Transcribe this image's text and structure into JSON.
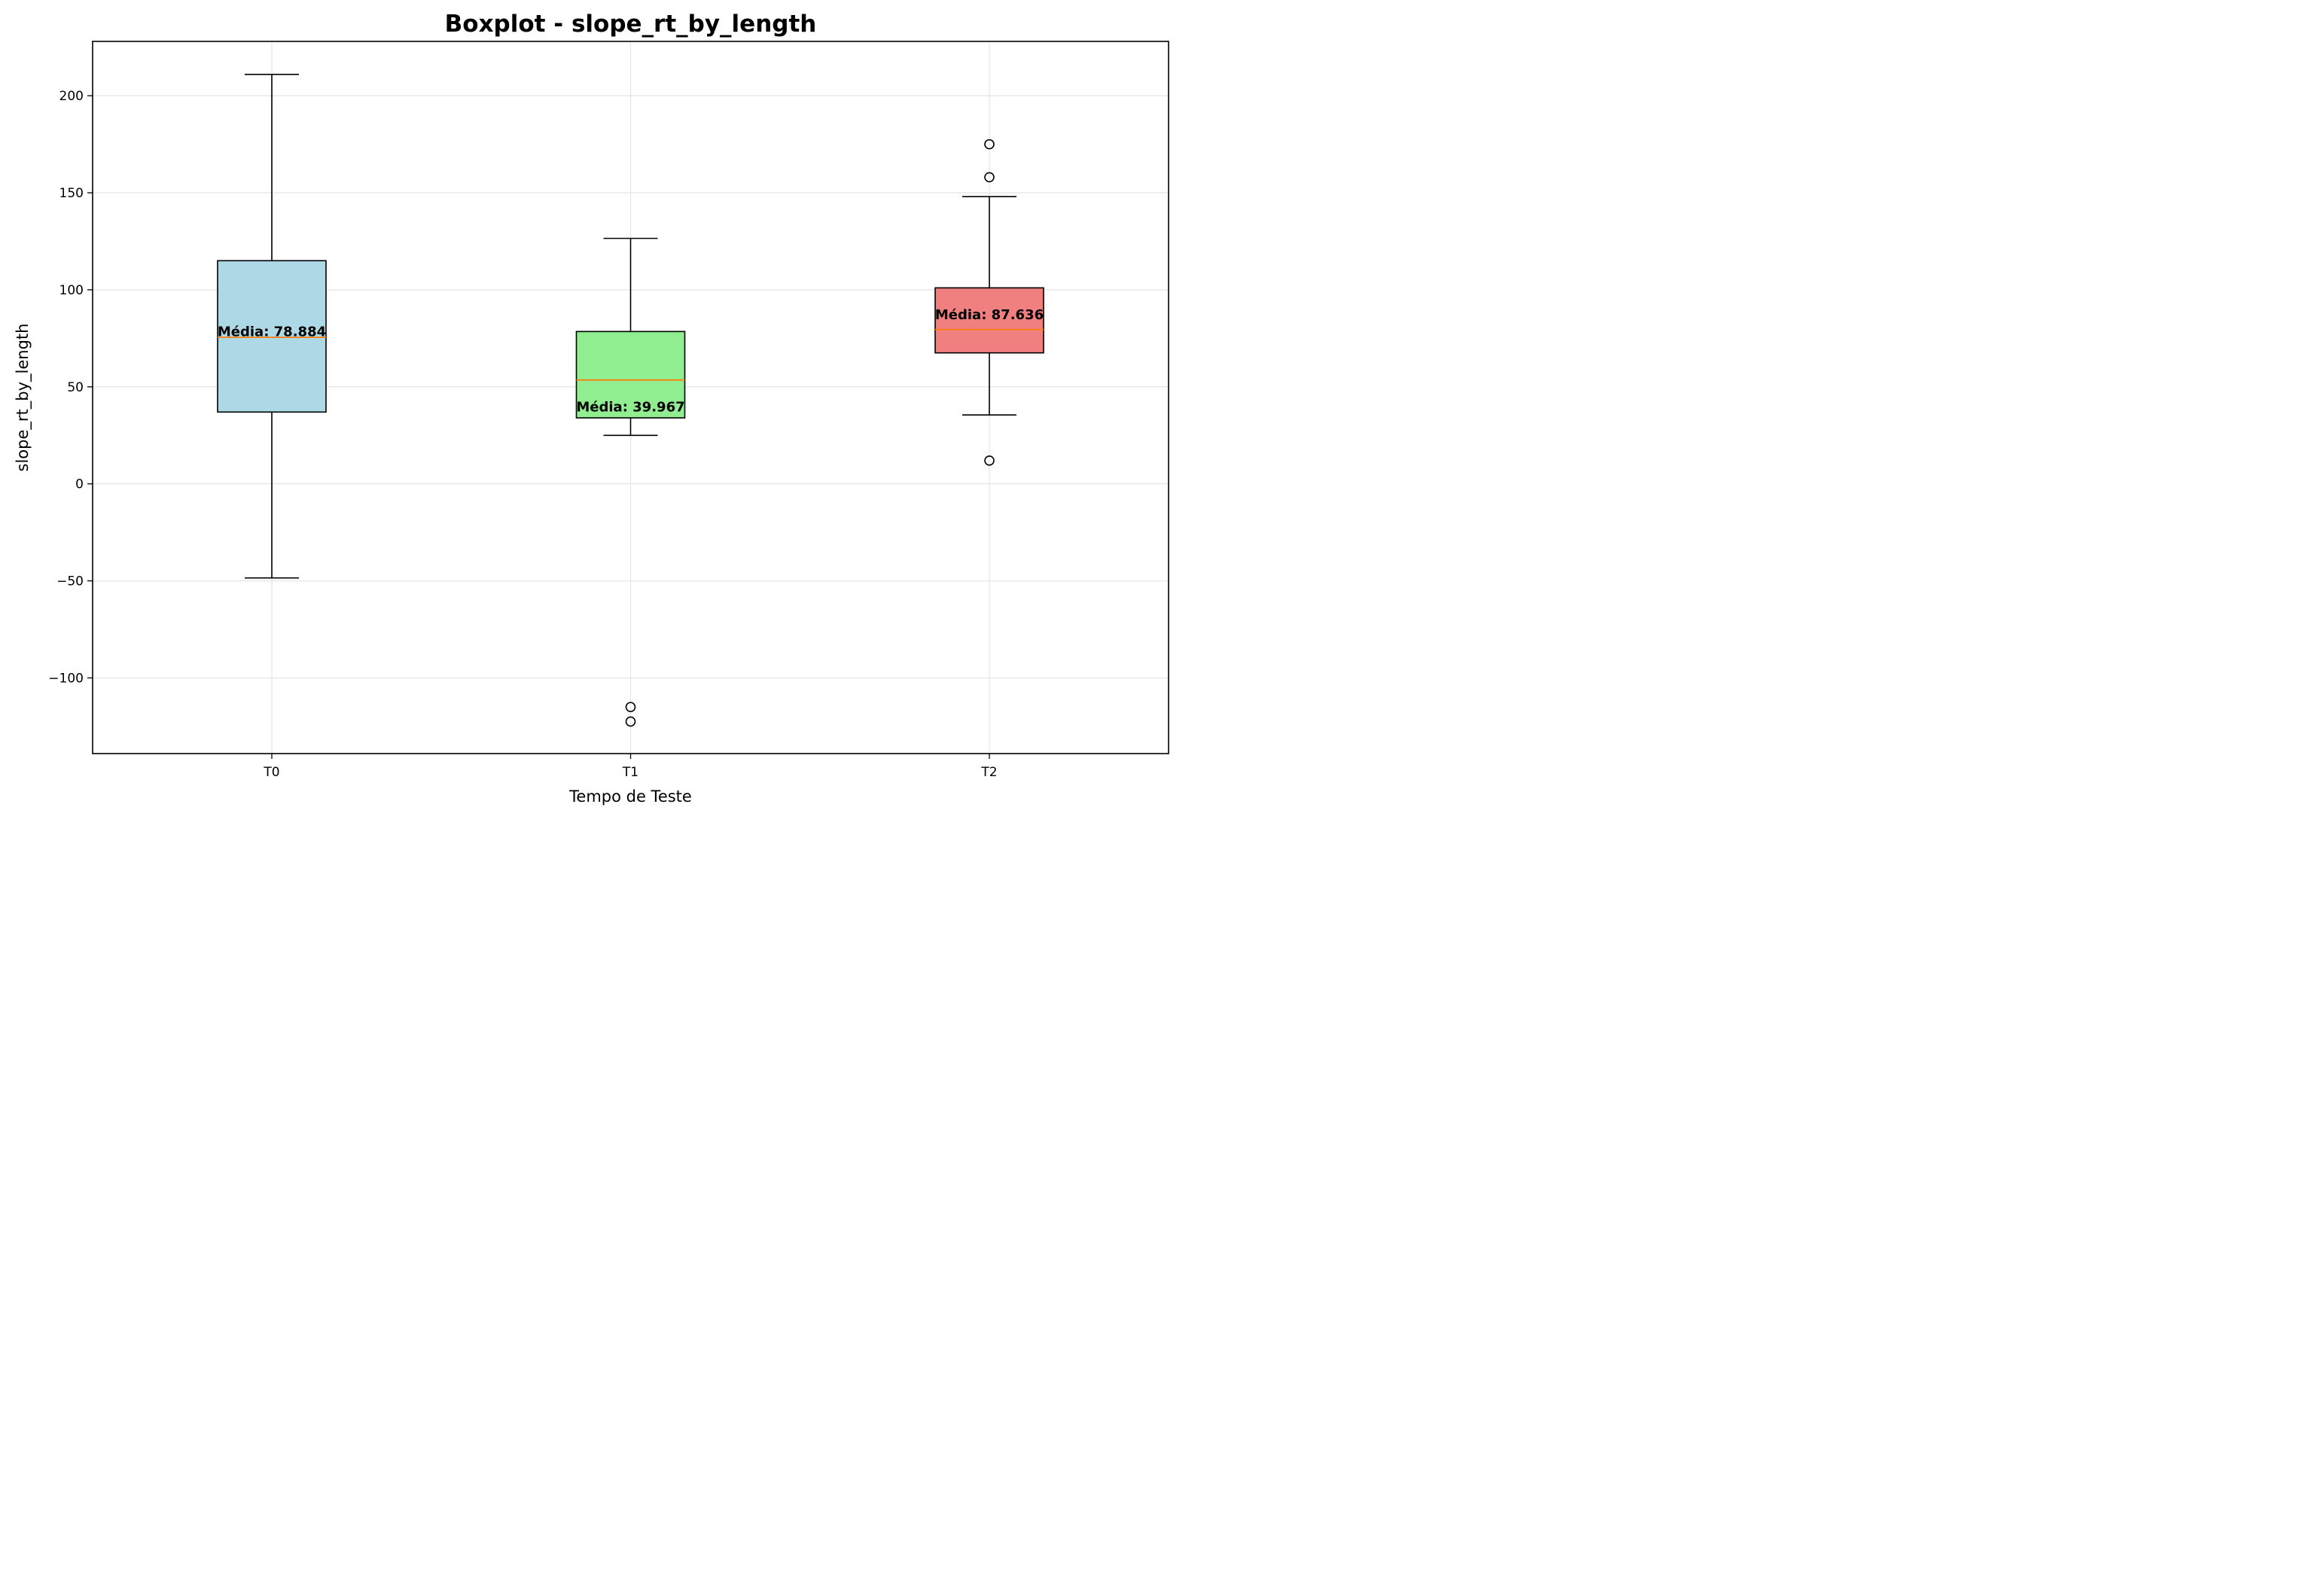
{
  "chart_data": {
    "type": "boxplot",
    "title": "Boxplot - slope_rt_by_length",
    "xlabel": "Tempo de Teste",
    "ylabel": "slope_rt_by_length",
    "ylim": [
      -139,
      228
    ],
    "yticks": [
      -100,
      -50,
      0,
      50,
      100,
      150,
      200
    ],
    "ytick_labels": [
      "−100",
      "−50",
      "0",
      "50",
      "100",
      "150",
      "200"
    ],
    "grid": true,
    "categories": [
      "T0",
      "T1",
      "T2"
    ],
    "boxes": [
      {
        "category": "T0",
        "whisker_low": -48.5,
        "q1": 37.0,
        "median": 75.5,
        "q3": 115.0,
        "whisker_high": 211.0,
        "outliers": [],
        "color": "#add8e6",
        "mean_label": "Média: 78.884"
      },
      {
        "category": "T1",
        "whisker_low": 25.0,
        "q1": 34.0,
        "median": 53.5,
        "q3": 78.5,
        "whisker_high": 126.5,
        "outliers": [
          -115.0,
          -122.5
        ],
        "color": "#90ee90",
        "mean_label": "Média: 39.967"
      },
      {
        "category": "T2",
        "whisker_low": 35.5,
        "q1": 67.5,
        "median": 79.5,
        "q3": 101.0,
        "whisker_high": 148.0,
        "outliers": [
          175.0,
          158.0,
          12.0
        ],
        "color": "#f08080",
        "mean_label": "Média: 87.636"
      }
    ],
    "median_color": "#ff7f0e"
  }
}
